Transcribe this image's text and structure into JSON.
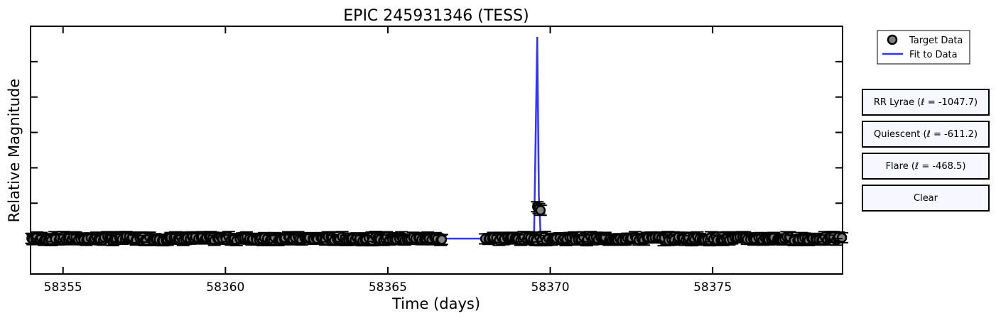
{
  "chart_data": {
    "type": "scatter",
    "title": "EPIC 245931346 (TESS)",
    "xlabel": "Time (days)",
    "ylabel": "Relative Magnitude",
    "xlim": [
      58354,
      58379
    ],
    "ylim": [
      -1.0,
      6.0
    ],
    "x_ticks": [
      58355,
      58360,
      58365,
      58370,
      58375
    ],
    "y_ticks": [
      0,
      1,
      2,
      3,
      4,
      5
    ],
    "y_tick_labels_visible": false,
    "grid": false,
    "legend_position": "top-right (outside plot)",
    "series": [
      {
        "name": "Target Data",
        "kind": "points_with_errorbars",
        "color": "#808080",
        "segments": [
          {
            "x_start": 58354.0,
            "x_end": 58366.7,
            "y": 0.0
          },
          {
            "x_start": 58368.0,
            "x_end": 58379.0,
            "y": 0.0
          }
        ],
        "outliers": [
          {
            "x": 58369.6,
            "y": 0.9
          },
          {
            "x": 58369.65,
            "y": 0.85
          },
          {
            "x": 58369.7,
            "y": 0.8
          }
        ]
      },
      {
        "name": "Fit to Data",
        "kind": "line",
        "color": "#3333ff",
        "points": [
          {
            "x": 58354.0,
            "y": 0.0
          },
          {
            "x": 58369.5,
            "y": 0.0
          },
          {
            "x": 58369.6,
            "y": 5.7
          },
          {
            "x": 58369.65,
            "y": 1.2
          },
          {
            "x": 58369.7,
            "y": 0.2
          },
          {
            "x": 58369.75,
            "y": 0.0
          },
          {
            "x": 58379.0,
            "y": 0.0
          }
        ]
      }
    ]
  },
  "legend": {
    "items": [
      {
        "label": "Target Data",
        "marker": "circle",
        "color": "#808080"
      },
      {
        "label": "Fit to Data",
        "marker": "line",
        "color": "#3333ff"
      }
    ]
  },
  "buttons": [
    {
      "label": "RR Lyrae (ℓ = -1047.7)"
    },
    {
      "label": "Quiescent (ℓ = -611.2)"
    },
    {
      "label": "Flare (ℓ = -468.5)"
    },
    {
      "label": "Clear"
    }
  ]
}
